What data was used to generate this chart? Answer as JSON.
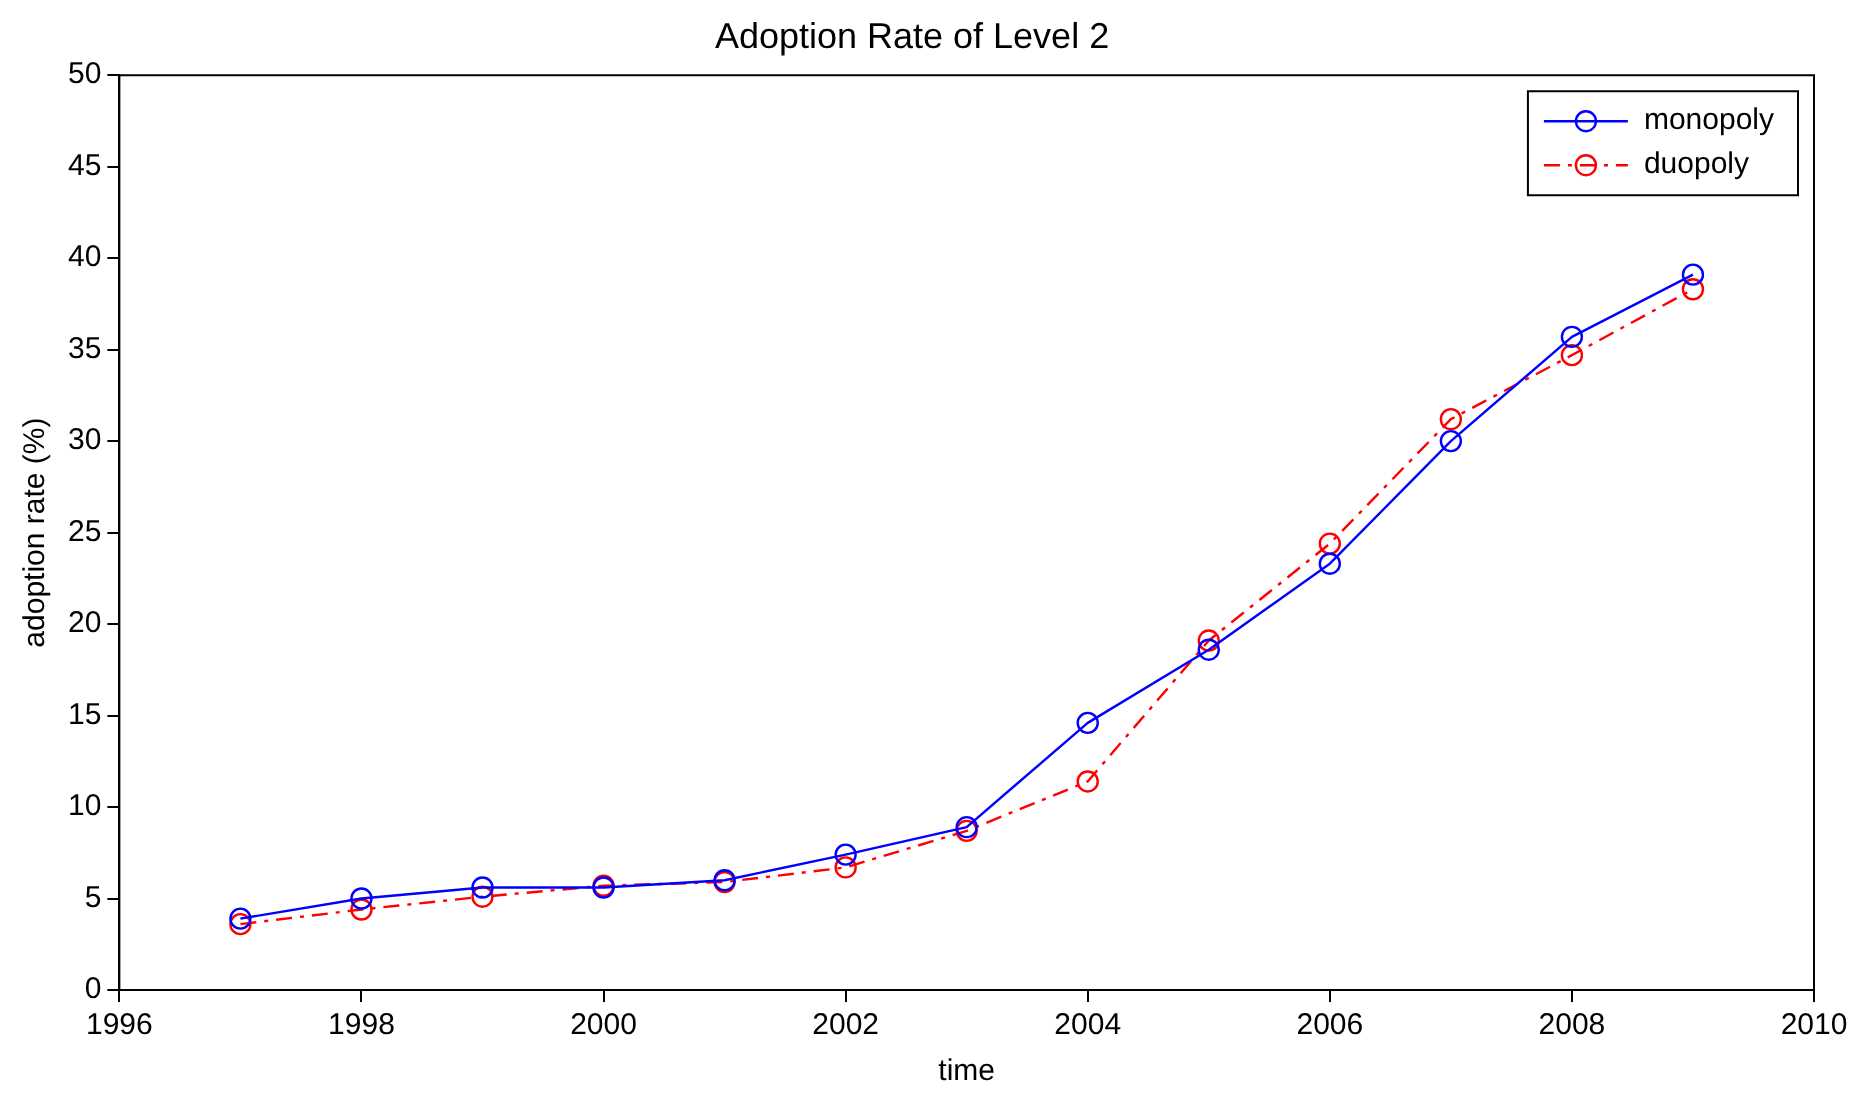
{
  "chart_data": {
    "type": "line",
    "title": "Adoption Rate of Level 2",
    "xlabel": "time",
    "ylabel": "adoption rate (%)",
    "x": [
      1997,
      1998,
      1999,
      2000,
      2001,
      2002,
      2003,
      2004,
      2005,
      2006,
      2007,
      2008,
      2009
    ],
    "series": [
      {
        "name": "monopoly",
        "color": "#0000ff",
        "line_style": "solid",
        "values": [
          3.9,
          5.0,
          5.6,
          5.6,
          6.0,
          7.4,
          8.9,
          14.6,
          18.6,
          23.3,
          30.0,
          35.7,
          39.1
        ]
      },
      {
        "name": "duopoly",
        "color": "#ff0000",
        "line_style": "dashed",
        "values": [
          3.6,
          4.4,
          5.1,
          5.7,
          5.9,
          6.7,
          8.7,
          11.4,
          19.1,
          24.4,
          31.2,
          34.7,
          38.3
        ]
      }
    ],
    "xlim": [
      1996,
      2010
    ],
    "xticks": [
      1996,
      1998,
      2000,
      2002,
      2004,
      2006,
      2008,
      2010
    ],
    "ylim": [
      0,
      50
    ],
    "yticks": [
      0,
      5,
      10,
      15,
      20,
      25,
      30,
      35,
      40,
      45,
      50
    ],
    "grid": false,
    "legend": "top right",
    "marker": "circle"
  }
}
